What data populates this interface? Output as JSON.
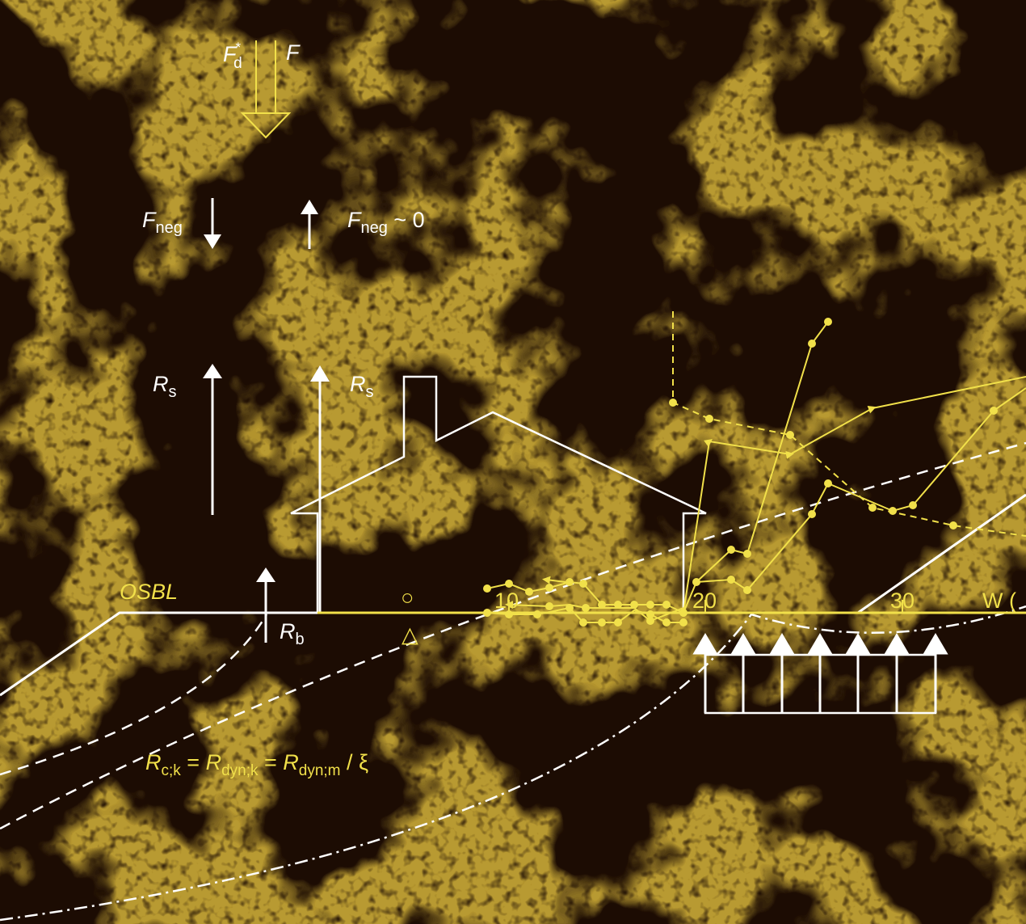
{
  "labels": {
    "fd_main": "F",
    "fd_sup": "*",
    "fd_sub": "d",
    "f_main": "F",
    "fneg_left_main": "F",
    "fneg_left_sub": "neg",
    "fneg_right_main": "F",
    "fneg_right_sub": "neg",
    "fneg_right_tail": " ~ 0",
    "rs_left_main": "R",
    "rs_left_sub": "s",
    "rs_right_main": "R",
    "rs_right_sub": "s",
    "rb_main": "R",
    "rb_sub": "b",
    "osbl": "OSBL",
    "circle_symbol": "○",
    "triangle_symbol": "△",
    "formula": {
      "r1": "R",
      "s1": "c;k",
      "eq1": " = ",
      "r2": "R",
      "s2": "dyn;k",
      "eq2": " = ",
      "r3": "R",
      "s3": "dyn;m",
      "tail": " / ξ"
    },
    "axis_label": "W ("
  },
  "axis_ticks": [
    "10",
    "20",
    "30"
  ],
  "colors": {
    "background": "#1c0c03",
    "soil": "#7a5208",
    "yellow": "#f1e04a",
    "white": "#ffffff"
  }
}
